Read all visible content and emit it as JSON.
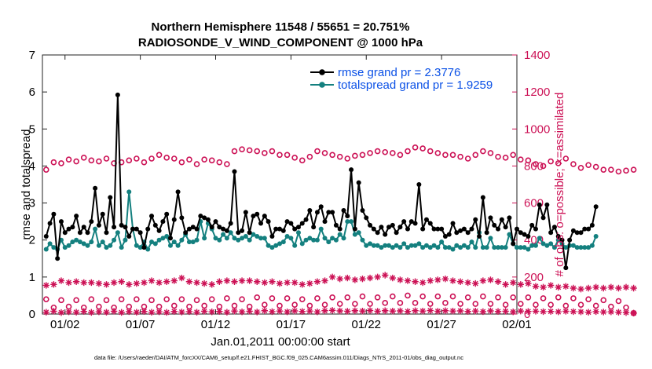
{
  "chart_data": {
    "type": "line",
    "title": "Northern Hemisphere 11548 / 55651 = 20.751%",
    "subtitle": "RADIOSONDE_V_WIND_COMPONENT @ 1000 hPa",
    "xlabel": "Jan.01,2011 00:00:00 start",
    "ylabel": "rmse and totalspread",
    "ylabel_right": "# of obs: o=possible; ×=assimilated",
    "footnote": "data file: /Users/raeder/DAI/ATM_forcXX/CAM6_setup/f.e21.FHIST_BGC.f09_025.CAM6assim.011/Diags_NTrS_2011-01/obs_diag_output.nc",
    "xlim": [
      0.5,
      32
    ],
    "ylim": [
      0,
      7
    ],
    "ylim_right": [
      0,
      1400
    ],
    "x_ticks": [
      2,
      7,
      12,
      17,
      22,
      27,
      32
    ],
    "x_tick_labels": [
      "01/02",
      "01/07",
      "01/12",
      "01/17",
      "01/22",
      "01/27",
      "02/01"
    ],
    "y_ticks": [
      0,
      1,
      2,
      3,
      4,
      5,
      6,
      7
    ],
    "y_tick_labels": [
      "0",
      "1",
      "2",
      "3",
      "4",
      "5",
      "6",
      "7"
    ],
    "y_ticks_right": [
      0,
      200,
      400,
      600,
      800,
      1000,
      1200,
      1400
    ],
    "y_tick_labels_right": [
      "0",
      "200",
      "400",
      "600",
      "800",
      "1000",
      "1200",
      "1400"
    ],
    "x_start": 0.75,
    "x_step": 0.25,
    "series": [
      {
        "name": "rmse",
        "legend": "rmse grand pr = 2.3776",
        "color": "#000000",
        "axis": "left",
        "values": [
          2.1,
          2.45,
          2.7,
          1.5,
          2.5,
          2.2,
          2.3,
          2.35,
          2.65,
          2.2,
          2.35,
          2.2,
          2.5,
          3.4,
          2.4,
          2.7,
          2.2,
          3.15,
          2.35,
          5.92,
          2.4,
          2.35,
          2.1,
          2.3,
          2.3,
          2.2,
          1.8,
          2.3,
          2.65,
          2.4,
          2.25,
          2.5,
          2.7,
          2.05,
          2.55,
          3.3,
          2.6,
          2.2,
          2.3,
          2.35,
          2.3,
          2.65,
          2.6,
          2.55,
          2.35,
          2.5,
          2.35,
          2.3,
          2.25,
          2.45,
          3.85,
          2.2,
          2.25,
          2.75,
          2.2,
          2.65,
          2.7,
          2.45,
          2.65,
          2.5,
          2.1,
          2.3,
          2.3,
          2.25,
          2.5,
          2.45,
          2.3,
          2.35,
          2.45,
          2.55,
          2.8,
          2.35,
          2.75,
          2.9,
          2.5,
          2.75,
          2.75,
          2.4,
          2.3,
          2.8,
          2.65,
          3.9,
          2.3,
          3.55,
          2.8,
          2.6,
          2.4,
          2.3,
          2.2,
          2.35,
          2.15,
          2.35,
          2.4,
          2.2,
          2.35,
          2.5,
          2.3,
          2.5,
          2.45,
          3.5,
          2.3,
          2.55,
          2.45,
          2.3,
          2.3,
          2.3,
          2.1,
          2.15,
          2.45,
          2.2,
          2.25,
          2.3,
          2.2,
          2.3,
          2.55,
          2.1,
          3.15,
          2.2,
          2.6,
          2.4,
          2.3,
          2.55,
          2.35,
          2.6,
          1.9,
          2.3,
          2.2,
          2.15,
          2.1,
          2.4,
          2.3,
          2.95,
          2.6,
          2.95,
          2.2,
          2.35,
          2.1,
          2.0,
          1.25,
          2.0,
          2.25,
          2.2,
          2.2,
          2.3,
          2.3,
          2.4,
          2.9
        ]
      },
      {
        "name": "totalspread",
        "legend": "totalspread grand pr = 1.9259",
        "color": "#14807f",
        "axis": "left",
        "values": [
          1.75,
          1.9,
          1.8,
          1.75,
          2.0,
          1.8,
          1.85,
          1.95,
          2.0,
          1.95,
          1.9,
          1.85,
          1.95,
          2.3,
          1.85,
          1.95,
          1.8,
          1.85,
          2.0,
          2.2,
          1.8,
          2.0,
          3.3,
          2.3,
          1.85,
          1.8,
          1.95,
          1.75,
          1.95,
          1.9,
          2.0,
          2.05,
          2.1,
          1.85,
          1.95,
          1.85,
          2.0,
          2.15,
          1.95,
          1.95,
          2.0,
          2.5,
          2.05,
          2.45,
          2.3,
          2.05,
          2.0,
          2.15,
          2.05,
          2.2,
          2.05,
          2.0,
          2.05,
          2.1,
          2.0,
          2.15,
          2.1,
          2.05,
          2.05,
          1.85,
          1.8,
          1.85,
          1.9,
          1.95,
          2.1,
          2.05,
          1.85,
          2.2,
          1.9,
          2.0,
          2.05,
          2.0,
          2.0,
          2.3,
          2.05,
          1.95,
          2.05,
          2.0,
          2.15,
          2.05,
          2.5,
          2.5,
          2.15,
          2.2,
          2.0,
          1.85,
          1.9,
          1.85,
          1.85,
          1.8,
          1.85,
          1.85,
          1.8,
          1.85,
          1.8,
          1.9,
          1.8,
          1.85,
          1.85,
          1.9,
          1.8,
          1.85,
          1.8,
          1.85,
          1.8,
          1.95,
          1.8,
          1.8,
          1.75,
          1.85,
          1.8,
          1.85,
          1.8,
          1.95,
          1.8,
          2.2,
          1.8,
          1.8,
          2.05,
          1.8,
          1.8,
          1.8,
          1.8,
          2.15,
          1.9,
          1.8,
          1.8,
          1.8,
          1.75,
          1.85,
          1.85,
          2.05,
          1.9,
          1.85,
          1.9,
          1.8,
          2.0,
          1.9,
          1.8,
          1.85,
          1.85,
          1.8,
          1.8,
          1.8,
          1.8,
          1.85,
          2.1
        ]
      },
      {
        "name": "obs_possible_upper",
        "color": "#cc1155",
        "marker": "open-circle",
        "axis": "right",
        "x_start": 0.75,
        "x_step": 0.5,
        "values": [
          780,
          820,
          815,
          835,
          825,
          845,
          830,
          825,
          840,
          815,
          820,
          830,
          840,
          820,
          840,
          860,
          845,
          840,
          820,
          835,
          810,
          835,
          830,
          820,
          810,
          880,
          890,
          885,
          880,
          870,
          880,
          860,
          860,
          845,
          830,
          850,
          880,
          870,
          860,
          850,
          840,
          855,
          860,
          870,
          880,
          875,
          870,
          860,
          880,
          900,
          895,
          880,
          870,
          860,
          860,
          850,
          840,
          860,
          880,
          870,
          850,
          845,
          860,
          835,
          830,
          810,
          800,
          825,
          815,
          840,
          810,
          790,
          805,
          795,
          780,
          780,
          770,
          775,
          780
        ]
      },
      {
        "name": "obs_possible_lower",
        "color": "#cc1155",
        "marker": "open-circle",
        "axis": "right",
        "x_start": 0.75,
        "x_step": 0.5,
        "values": [
          80,
          35,
          75,
          40,
          75,
          35,
          80,
          40,
          75,
          35,
          80,
          40,
          80,
          40,
          75,
          40,
          80,
          45,
          80,
          40,
          75,
          45,
          80,
          40,
          85,
          45,
          80,
          40,
          90,
          50,
          85,
          45,
          85,
          50,
          80,
          45,
          85,
          50,
          90,
          55,
          90,
          55,
          95,
          55,
          90,
          60,
          95,
          60,
          100,
          60,
          95,
          55,
          95,
          60,
          95,
          55,
          90,
          55,
          95,
          55,
          90,
          50,
          90,
          55,
          90,
          50,
          85,
          50,
          90,
          45,
          85,
          50,
          80,
          45,
          75,
          40,
          70,
          35,
          5
        ]
      },
      {
        "name": "obs_assimilated_upper",
        "color": "#cc1155",
        "marker": "asterisk",
        "axis": "right",
        "x_start": 0.75,
        "x_step": 0.5,
        "values": [
          155,
          160,
          180,
          170,
          175,
          170,
          170,
          165,
          160,
          170,
          175,
          160,
          165,
          170,
          180,
          170,
          175,
          180,
          195,
          175,
          170,
          165,
          160,
          175,
          180,
          175,
          180,
          180,
          175,
          170,
          175,
          165,
          170,
          170,
          160,
          165,
          175,
          180,
          200,
          190,
          195,
          185,
          190,
          195,
          200,
          210,
          195,
          185,
          180,
          175,
          170,
          180,
          185,
          190,
          180,
          175,
          170,
          165,
          180,
          185,
          175,
          160,
          170,
          160,
          165,
          150,
          145,
          155,
          145,
          150,
          140,
          135,
          140,
          145,
          140,
          145,
          140,
          145,
          140
        ]
      },
      {
        "name": "obs_assimilated_lower",
        "color": "#cc1155",
        "marker": "asterisk",
        "axis": "right",
        "x_start": 0.75,
        "x_step": 0.5,
        "values": [
          10,
          15,
          8,
          12,
          10,
          14,
          9,
          12,
          10,
          15,
          9,
          13,
          10,
          14,
          10,
          12,
          9,
          14,
          11,
          13,
          10,
          15,
          12,
          14,
          10,
          16,
          12,
          15,
          11,
          18,
          13,
          16,
          12,
          17,
          14,
          16,
          12,
          18,
          20,
          17,
          15,
          18,
          16,
          19,
          15,
          18,
          16,
          17,
          14,
          18,
          16,
          19,
          15,
          18,
          16,
          17,
          14,
          16,
          13,
          17,
          14,
          15,
          12,
          16,
          14,
          15,
          13,
          14,
          12,
          15,
          13,
          12,
          10,
          13,
          11,
          12,
          10,
          8,
          5
        ]
      }
    ]
  }
}
